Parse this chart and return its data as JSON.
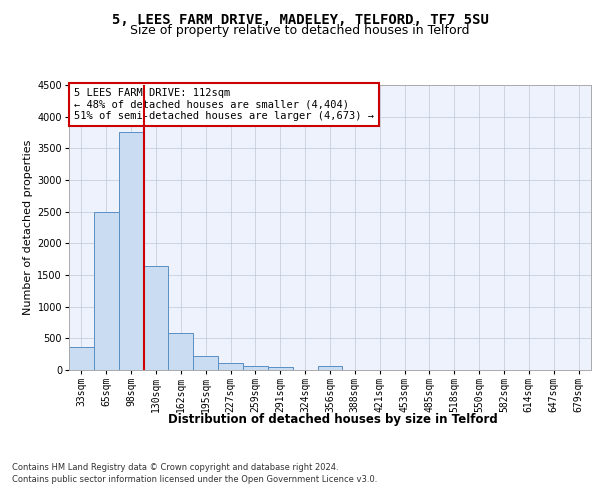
{
  "title": "5, LEES FARM DRIVE, MADELEY, TELFORD, TF7 5SU",
  "subtitle": "Size of property relative to detached houses in Telford",
  "xlabel": "Distribution of detached houses by size in Telford",
  "ylabel": "Number of detached properties",
  "bin_labels": [
    "33sqm",
    "65sqm",
    "98sqm",
    "130sqm",
    "162sqm",
    "195sqm",
    "227sqm",
    "259sqm",
    "291sqm",
    "324sqm",
    "356sqm",
    "388sqm",
    "421sqm",
    "453sqm",
    "485sqm",
    "518sqm",
    "550sqm",
    "582sqm",
    "614sqm",
    "647sqm",
    "679sqm"
  ],
  "bar_values": [
    370,
    2500,
    3750,
    1640,
    590,
    220,
    110,
    65,
    40,
    0,
    65,
    0,
    0,
    0,
    0,
    0,
    0,
    0,
    0,
    0,
    0
  ],
  "bar_color": "#c9dcf2",
  "bar_edge_color": "#5a8fc3",
  "vline_color": "#cc0000",
  "ylim": [
    0,
    4500
  ],
  "yticks": [
    0,
    500,
    1000,
    1500,
    2000,
    2500,
    3000,
    3500,
    4000,
    4500
  ],
  "annotation_text": "5 LEES FARM DRIVE: 112sqm\n← 48% of detached houses are smaller (4,404)\n51% of semi-detached houses are larger (4,673) →",
  "annotation_box_color": "#ffffff",
  "annotation_box_edge": "#cc0000",
  "footer_line1": "Contains HM Land Registry data © Crown copyright and database right 2024.",
  "footer_line2": "Contains public sector information licensed under the Open Government Licence v3.0.",
  "bg_color": "#edf2fc",
  "grid_color": "#c0c8d8",
  "title_fontsize": 10,
  "subtitle_fontsize": 9,
  "ylabel_fontsize": 8,
  "tick_fontsize": 7,
  "annot_fontsize": 7.5,
  "xlabel_fontsize": 8.5,
  "footer_fontsize": 6
}
